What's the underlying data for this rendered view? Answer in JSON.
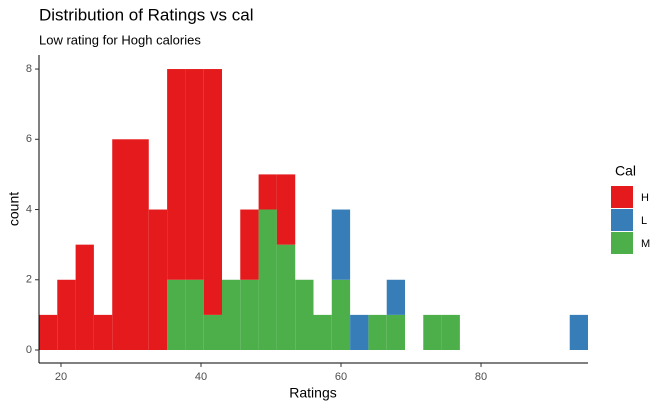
{
  "chart_data": {
    "type": "histogram",
    "title": "Distribution of Ratings vs cal",
    "subtitle": "Low rating for Hogh calories",
    "x_label": "Ratings",
    "y_label": "count",
    "legend_title": "Cal",
    "bins": [
      16.86,
      19.47,
      22.09,
      24.7,
      27.32,
      29.93,
      32.54,
      35.16,
      37.77,
      40.39,
      43.0,
      45.61,
      48.23,
      50.84,
      53.46,
      56.07,
      58.68,
      61.3,
      63.91,
      66.53,
      69.14,
      71.75,
      74.37,
      76.98,
      79.6,
      82.21,
      84.82,
      87.44,
      90.05,
      92.67,
      95.28
    ],
    "series": [
      {
        "name": "H",
        "color": "#e41a1c",
        "values": [
          1,
          2,
          3,
          1,
          6,
          6,
          4,
          6,
          6,
          7,
          0,
          2,
          1,
          2,
          0,
          0,
          0,
          0,
          0,
          0,
          0,
          0,
          0,
          0,
          0,
          0,
          0,
          0,
          0,
          0
        ]
      },
      {
        "name": "L",
        "color": "#377eb8",
        "values": [
          0,
          0,
          0,
          0,
          0,
          0,
          0,
          0,
          0,
          0,
          0,
          0,
          0,
          0,
          0,
          0,
          2,
          1,
          0,
          1,
          0,
          0,
          0,
          0,
          0,
          0,
          0,
          0,
          0,
          1
        ]
      },
      {
        "name": "M",
        "color": "#4daf4a",
        "values": [
          0,
          0,
          0,
          0,
          0,
          0,
          0,
          2,
          2,
          1,
          2,
          2,
          4,
          3,
          2,
          1,
          2,
          0,
          1,
          1,
          0,
          1,
          1,
          0,
          0,
          0,
          0,
          0,
          0,
          0
        ]
      }
    ],
    "stack_order": [
      "M",
      "L",
      "H"
    ],
    "xlim": [
      16.86,
      95.28
    ],
    "xticks": [
      20,
      40,
      60,
      80
    ],
    "ylim": [
      -0.37,
      8.4
    ],
    "yticks": [
      0,
      2,
      4,
      6,
      8
    ],
    "legend_position": "right"
  }
}
